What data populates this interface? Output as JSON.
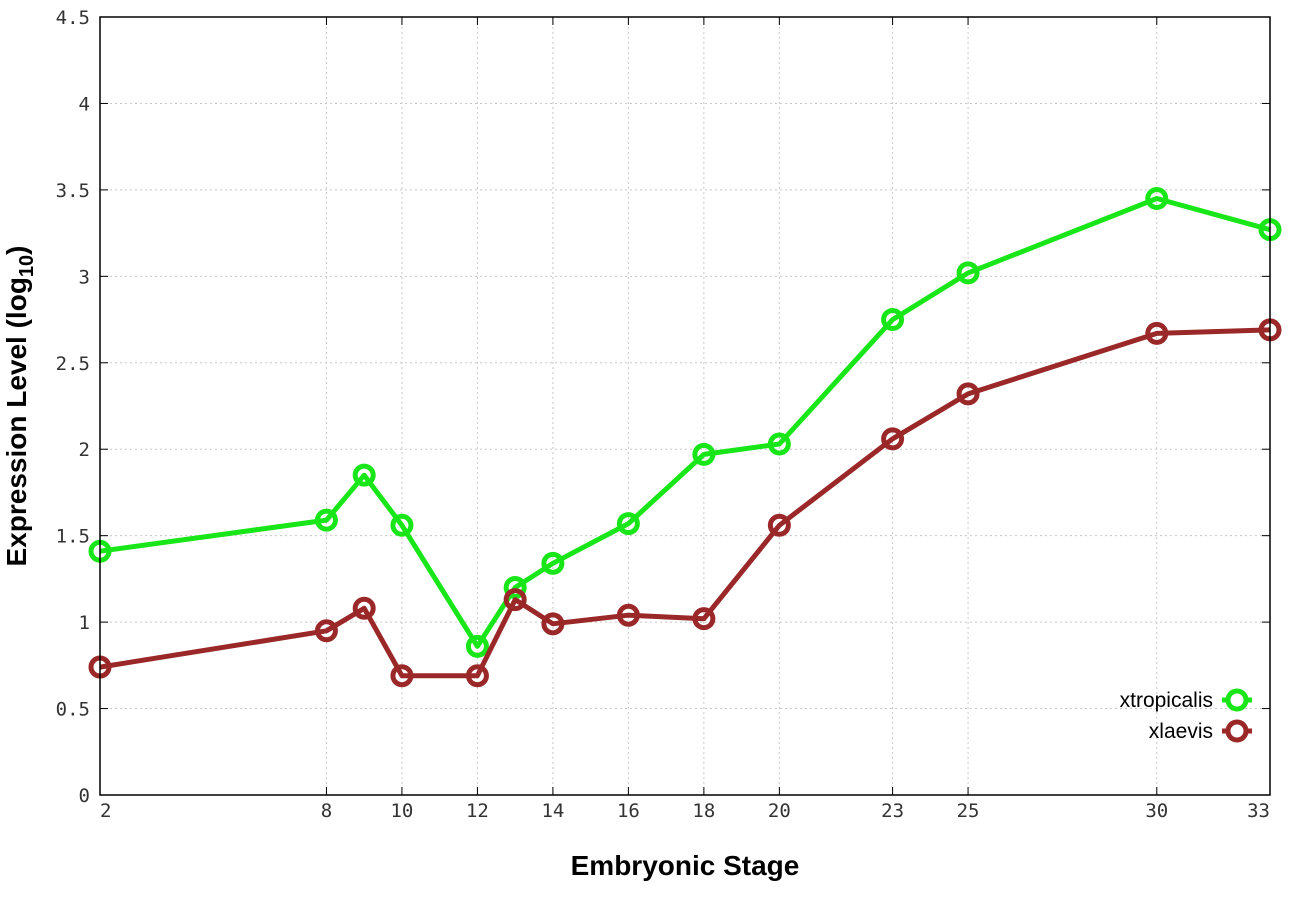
{
  "chart_data": {
    "type": "line",
    "xlabel": "Embryonic Stage",
    "ylabel_main": "Expression Level (log",
    "ylabel_sub": "10",
    "ylabel_end": ")",
    "x": [
      2,
      8,
      9,
      10,
      12,
      13,
      14,
      16,
      18,
      20,
      23,
      25,
      30,
      33
    ],
    "x_ticks": [
      "2",
      "8",
      "10",
      "12",
      "14",
      "16",
      "18",
      "20",
      "23",
      "25",
      "30",
      "33"
    ],
    "x_tick_values": [
      2,
      8,
      10,
      12,
      14,
      16,
      18,
      20,
      23,
      25,
      30,
      33
    ],
    "xlim": [
      2,
      33
    ],
    "y_ticks": [
      "0",
      "0.5",
      "1",
      "1.5",
      "2",
      "2.5",
      "3",
      "3.5",
      "4",
      "4.5"
    ],
    "y_tick_values": [
      0,
      0.5,
      1,
      1.5,
      2,
      2.5,
      3,
      3.5,
      4,
      4.5
    ],
    "ylim": [
      0,
      4.5
    ],
    "grid": true,
    "legend_position": "bottom-right",
    "series": [
      {
        "name": "xtropicalis",
        "color": "#19e619",
        "values": [
          1.41,
          1.59,
          1.85,
          1.56,
          0.86,
          1.2,
          1.34,
          1.57,
          1.97,
          2.03,
          2.75,
          3.02,
          3.45,
          3.27
        ]
      },
      {
        "name": "xlaevis",
        "color": "#9b2828",
        "values": [
          0.74,
          0.95,
          1.08,
          0.69,
          0.69,
          1.13,
          0.99,
          1.04,
          1.02,
          1.56,
          2.06,
          2.32,
          2.67,
          2.69
        ]
      }
    ]
  }
}
